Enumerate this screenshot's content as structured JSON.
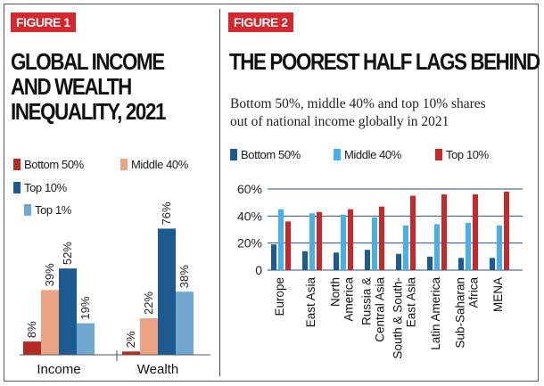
{
  "figure1": {
    "tag": "FIGURE 1",
    "title_lines": [
      "GLOBAL INCOME",
      "AND WEALTH",
      "INEQUALITY, 2021"
    ],
    "legend": [
      {
        "label": "Bottom 50%",
        "color": "#b62a25"
      },
      {
        "label": "Middle 40%",
        "color": "#e9a484"
      },
      {
        "label": "Top 10%",
        "color": "#1d5a8f"
      },
      {
        "label": "Top 1%",
        "color": "#70a8d1"
      }
    ]
  },
  "figure2": {
    "tag": "FIGURE 2",
    "title": "THE POOREST HALF LAGS BEHIND",
    "subtitle_lines": [
      "Bottom 50%, middle 40% and top 10% shares",
      "out of national income globally in 2021"
    ],
    "legend": [
      {
        "label": "Bottom 50%",
        "color": "#1d5a8f"
      },
      {
        "label": "Middle 40%",
        "color": "#45b1e6"
      },
      {
        "label": "Top 10%",
        "color": "#c42a2a"
      }
    ]
  },
  "chart_data": [
    {
      "type": "bar",
      "title": "GLOBAL INCOME AND WEALTH INEQUALITY, 2021",
      "categories": [
        "Income",
        "Wealth"
      ],
      "series": [
        {
          "name": "Bottom 50%",
          "values": [
            8,
            2
          ],
          "labels": [
            "8%",
            "2%"
          ],
          "color": "#b62a25"
        },
        {
          "name": "Middle 40%",
          "values": [
            39,
            22
          ],
          "labels": [
            "39%",
            "22%"
          ],
          "color": "#e9a484"
        },
        {
          "name": "Top 10%",
          "values": [
            52,
            76
          ],
          "labels": [
            "52%",
            "76%"
          ],
          "color": "#1d5a8f"
        },
        {
          "name": "Top 1%",
          "values": [
            19,
            38
          ],
          "labels": [
            "19%",
            "38%"
          ],
          "color": "#70a8d1"
        }
      ],
      "ylim": [
        0,
        80
      ]
    },
    {
      "type": "bar",
      "title": "THE POOREST HALF LAGS BEHIND",
      "categories": [
        "Europe",
        "East Asia",
        "North America",
        "Russia & Central Asia",
        "South & South-East Asia",
        "Latin America",
        "Sub-Saharan Africa",
        "MENA"
      ],
      "category_lines": [
        [
          "Europe"
        ],
        [
          "East Asia"
        ],
        [
          "North",
          "America"
        ],
        [
          "Russia &",
          "Central Asia"
        ],
        [
          "South & South-",
          "East Asia"
        ],
        [
          "Latin America"
        ],
        [
          "Sub-Saharan",
          "Africa"
        ],
        [
          "MENA"
        ]
      ],
      "series": [
        {
          "name": "Bottom 50%",
          "values": [
            19,
            14,
            13,
            15,
            12,
            10,
            9,
            9
          ],
          "color": "#1d5a8f"
        },
        {
          "name": "Middle 40%",
          "values": [
            45,
            42,
            41,
            39,
            33,
            34,
            35,
            33
          ],
          "color": "#45b1e6"
        },
        {
          "name": "Top 10%",
          "values": [
            36,
            43,
            45,
            47,
            55,
            56,
            56,
            58
          ],
          "color": "#c42a2a"
        }
      ],
      "yticks": [
        "0",
        "20%",
        "40%",
        "60%"
      ],
      "ylim": [
        0,
        60
      ],
      "grid": true
    }
  ]
}
